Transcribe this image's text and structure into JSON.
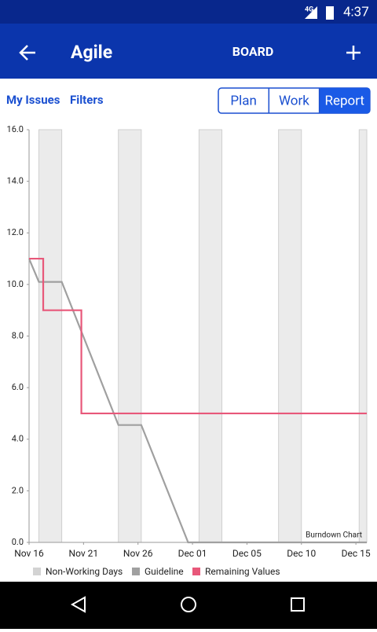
{
  "status_bar": {
    "network": "4G",
    "time": "4:37"
  },
  "app_bar": {
    "title": "Agile",
    "tab": "BOARD"
  },
  "toolbar": {
    "links": [
      "My Issues",
      "Filters"
    ],
    "segments": [
      "Plan",
      "Work",
      "Report"
    ],
    "selected": 2
  },
  "chart_data": {
    "type": "line",
    "annotation": "Burndown Chart",
    "xlim": [
      0,
      31
    ],
    "xticks": [
      {
        "value": 0,
        "label": "Nov 16"
      },
      {
        "value": 5,
        "label": "Nov 21"
      },
      {
        "value": 10,
        "label": "Nov 26"
      },
      {
        "value": 15,
        "label": "Dec 01"
      },
      {
        "value": 20,
        "label": "Dec 05"
      },
      {
        "value": 25,
        "label": "Dec 10"
      },
      {
        "value": 30,
        "label": "Dec 15"
      }
    ],
    "ylim": [
      0,
      16
    ],
    "yticks": [
      {
        "value": 0,
        "label": "0.0"
      },
      {
        "value": 2,
        "label": "2.0"
      },
      {
        "value": 4,
        "label": "4.0"
      },
      {
        "value": 6,
        "label": "6.0"
      },
      {
        "value": 8,
        "label": "8.0"
      },
      {
        "value": 10,
        "label": "10.0"
      },
      {
        "value": 12,
        "label": "12.0"
      },
      {
        "value": 14,
        "label": "14.0"
      },
      {
        "value": 16,
        "label": "16.0"
      }
    ],
    "bands": {
      "name": "Non-Working Days",
      "color": "#ebebeb",
      "ranges": [
        [
          0.9,
          3
        ],
        [
          8.2,
          10.3
        ],
        [
          15.6,
          17.7
        ],
        [
          22.9,
          25
        ],
        [
          30.3,
          31
        ]
      ]
    },
    "series": [
      {
        "name": "Guideline",
        "color": "#a0a0a0",
        "x": [
          0,
          0.9,
          3,
          8.2,
          10.3,
          14.6,
          31
        ],
        "values": [
          11,
          10.1,
          10.1,
          4.55,
          4.55,
          0,
          0
        ]
      },
      {
        "name": "Remaining Values",
        "color": "#e8587a",
        "x": [
          0,
          1.3,
          1.3,
          4.8,
          4.8,
          31
        ],
        "values": [
          11,
          11,
          9,
          9,
          5,
          5
        ]
      }
    ]
  }
}
